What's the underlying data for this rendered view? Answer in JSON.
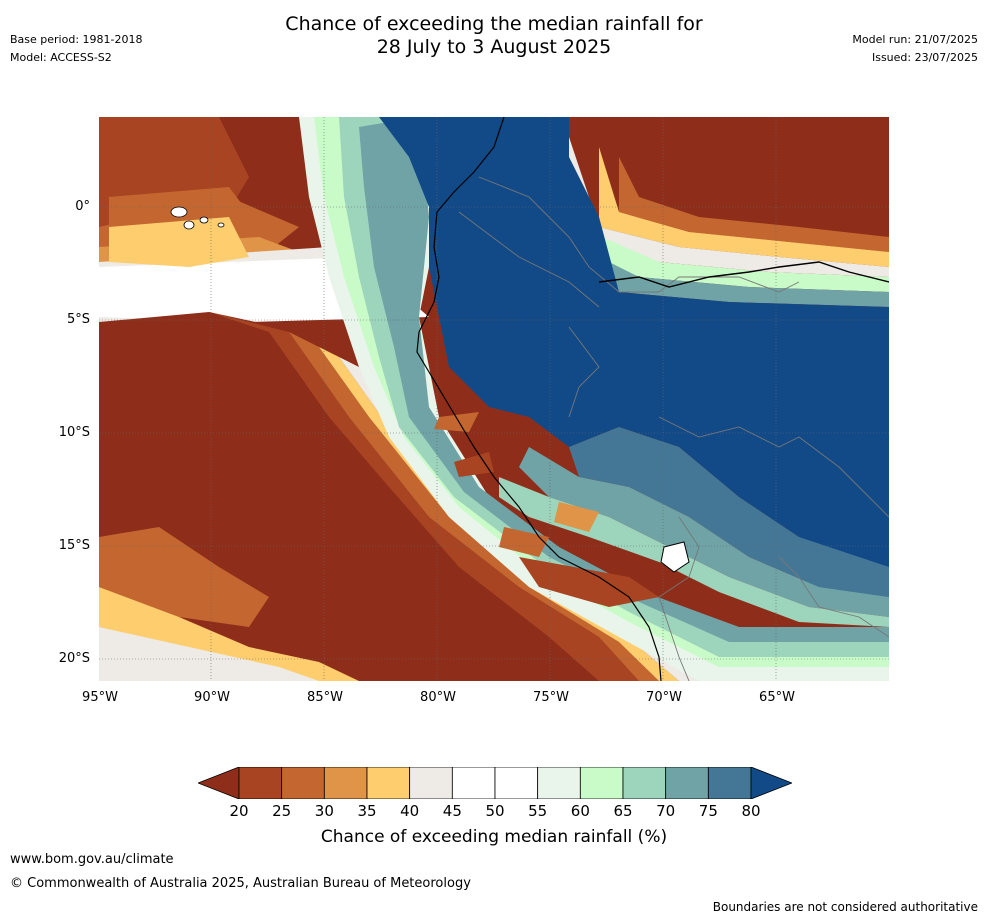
{
  "header": {
    "title_line1": "Chance of exceeding the median rainfall for",
    "title_line2": "28 July to 3 August 2025",
    "base_period": "Base period: 1981-2018",
    "model": "Model: ACCESS-S2",
    "model_run": "Model run: 21/07/2025",
    "issued": "Issued: 23/07/2025"
  },
  "map": {
    "lat_labels": [
      "0°",
      "5°S",
      "10°S",
      "15°S",
      "20°S"
    ],
    "lon_labels": [
      "95°W",
      "90°W",
      "85°W",
      "80°W",
      "75°W",
      "70°W",
      "65°W"
    ],
    "colors": {
      "p20": "#8e2e1a",
      "p25": "#a84422",
      "p30": "#c46630",
      "p35": "#df9448",
      "p40": "#fdcd6e",
      "p45": "#eeeae6",
      "p50": "#ffffff",
      "p55": "#ffffff",
      "p60": "#e9f5ea",
      "p65": "#c9fbc9",
      "p70": "#9dd4bc",
      "p75": "#6fa3a6",
      "p80": "#447796",
      "p85": "#124a88"
    }
  },
  "colorbar": {
    "ticks": [
      "20",
      "25",
      "30",
      "35",
      "40",
      "45",
      "50",
      "55",
      "60",
      "65",
      "70",
      "75",
      "80"
    ],
    "colors": [
      "#a84422",
      "#c46630",
      "#df9448",
      "#fdcd6e",
      "#eeeae6",
      "#ffffff",
      "#ffffff",
      "#e9f5ea",
      "#c9fbc9",
      "#9dd4bc",
      "#6fa3a6",
      "#447796"
    ],
    "under_color": "#8e2e1a",
    "over_color": "#124a88",
    "title": "Chance of exceeding median rainfall (%)"
  },
  "footer": {
    "url": "www.bom.gov.au/climate",
    "copyright": "© Commonwealth of Australia 2025, Australian Bureau of Meteorology",
    "note": "Boundaries are not considered authoritative"
  }
}
